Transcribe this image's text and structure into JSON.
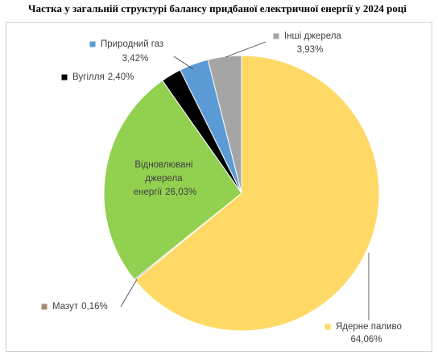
{
  "chart_data": {
    "type": "pie",
    "title": "Частка у загальній структурі балансу придбаної електричної енергії у 2024 році",
    "categories": [
      "Ядерне паливо",
      "Мазут",
      "Відновлювані джерела енергії",
      "Вугілля",
      "Природний газ",
      "Інші джерела"
    ],
    "values": [
      64.06,
      0.16,
      26.03,
      2.4,
      3.42,
      3.93
    ],
    "value_labels": [
      "64,06%",
      "0,16%",
      "26,03%",
      "2,40%",
      "3,42%",
      "3,93%"
    ],
    "colors": [
      "#FFD966",
      "#A68B6E",
      "#92D050",
      "#000000",
      "#5B9BD5",
      "#A5A5A5"
    ]
  }
}
